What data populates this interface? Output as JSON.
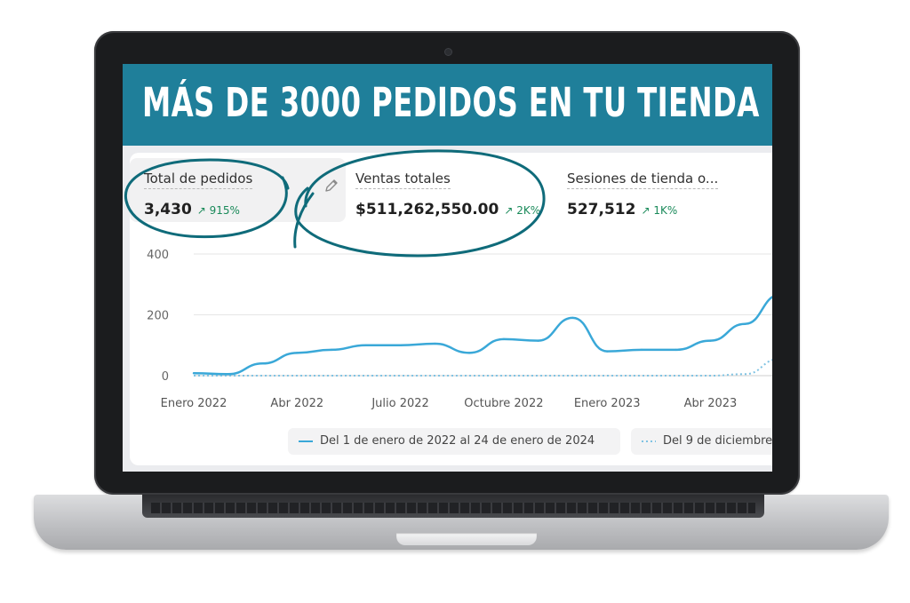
{
  "banner": {
    "title": "MÁS DE 3000 PEDIDOS EN TU TIENDA"
  },
  "metrics": [
    {
      "label": "Total de pedidos",
      "value": "3,430",
      "delta": "915%"
    },
    {
      "label": "Ventas totales",
      "value": "$511,262,550.00",
      "delta": "2K%"
    },
    {
      "label": "Sesiones de tienda o...",
      "value": "527,512",
      "delta": "1K%"
    }
  ],
  "colors": {
    "banner": "#1f7f9a",
    "series_primary": "#3aa8d8",
    "delta_up": "#1a8a5a",
    "annotation": "#0f6b7a"
  },
  "icons": {
    "edit": "pencil-icon",
    "delta": "arrow-up-right-icon"
  },
  "chart_data": {
    "type": "line",
    "ylim": [
      0,
      400
    ],
    "yticks": [
      "400",
      "200",
      "0"
    ],
    "xticks": [
      "Enero 2022",
      "Abr 2022",
      "Julio 2022",
      "Octubre 2022",
      "Enero 2023",
      "Abr 2023"
    ],
    "x": [
      "2022-01",
      "2022-02",
      "2022-03",
      "2022-04",
      "2022-05",
      "2022-06",
      "2022-07",
      "2022-08",
      "2022-09",
      "2022-10",
      "2022-11",
      "2022-12",
      "2023-01",
      "2023-02",
      "2023-03",
      "2023-04",
      "2023-05",
      "2023-06"
    ],
    "series": [
      {
        "name": "Del 1 de enero de 2022 al 24 de enero de 2024",
        "style": "solid",
        "values": [
          8,
          5,
          40,
          75,
          85,
          100,
          100,
          105,
          75,
          120,
          115,
          190,
          80,
          85,
          85,
          115,
          170,
          265
        ]
      },
      {
        "name": "Del 9 de diciembre",
        "style": "dotted",
        "values": [
          0,
          0,
          0,
          0,
          0,
          0,
          0,
          0,
          0,
          0,
          0,
          0,
          0,
          0,
          0,
          0,
          5,
          55
        ]
      }
    ]
  }
}
